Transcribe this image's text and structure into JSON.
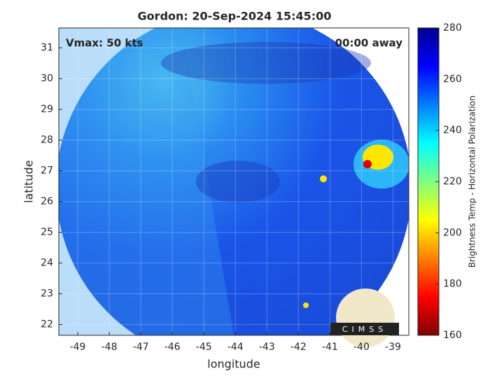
{
  "chart_data": {
    "type": "map",
    "title": "Gordon: 20-Sep-2024 15:45:00",
    "x_label": "longitude",
    "y_label": "latitude",
    "xlim": [
      -49.6,
      -38.5
    ],
    "ylim": [
      21.65,
      31.65
    ],
    "xticks": [
      -49,
      -48,
      -47,
      -46,
      -45,
      -44,
      -43,
      -42,
      -41,
      -40,
      -39
    ],
    "yticks": [
      22,
      23,
      24,
      25,
      26,
      27,
      28,
      29,
      30,
      31
    ],
    "grid": true,
    "annotations": [
      "Vmax: 50 kts",
      "00:00 away"
    ],
    "logo": "CIMSS",
    "colorbar": {
      "label": "Brightness Temp - Horizontal Polarization",
      "lim": [
        160,
        280
      ],
      "ticks": [
        160,
        180,
        200,
        220,
        240,
        260,
        280
      ],
      "colormap": [
        "#7f0000",
        "#ff0000",
        "#ff7f00",
        "#ffff00",
        "#7fff7f",
        "#00ffff",
        "#007fff",
        "#0000ff",
        "#00008f"
      ]
    }
  }
}
